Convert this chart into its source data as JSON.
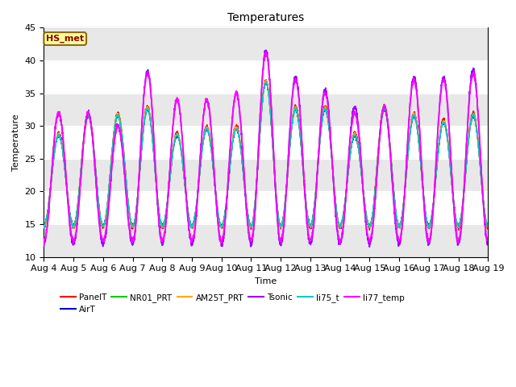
{
  "title": "Temperatures",
  "xlabel": "Time",
  "ylabel": "Temperature",
  "ylim": [
    10,
    45
  ],
  "xlim_days": [
    0,
    15
  ],
  "annotation_text": "HS_met",
  "annotation_color": "#8B0000",
  "annotation_bg": "#FFFF99",
  "annotation_border": "#8B6914",
  "series": [
    {
      "name": "PanelT",
      "color": "#ff0000",
      "lw": 1.0,
      "zorder": 3
    },
    {
      "name": "AirT",
      "color": "#0000cc",
      "lw": 1.0,
      "zorder": 3
    },
    {
      "name": "NR01_PRT",
      "color": "#00cc00",
      "lw": 1.0,
      "zorder": 3
    },
    {
      "name": "AM25T_PRT",
      "color": "#ffaa00",
      "lw": 1.0,
      "zorder": 3
    },
    {
      "name": "Tsonic",
      "color": "#9900ff",
      "lw": 1.2,
      "zorder": 4
    },
    {
      "name": "li75_t",
      "color": "#00cccc",
      "lw": 1.0,
      "zorder": 3
    },
    {
      "name": "li77_temp",
      "color": "#ff00ff",
      "lw": 1.2,
      "zorder": 5
    }
  ],
  "x_tick_labels": [
    "Aug 4",
    "Aug 5",
    "Aug 6",
    "Aug 7",
    "Aug 8",
    "Aug 9",
    "Aug 10",
    "Aug 11",
    "Aug 12",
    "Aug 13",
    "Aug 14",
    "Aug 15",
    "Aug 16",
    "Aug 17",
    "Aug 18",
    "Aug 19"
  ],
  "x_tick_positions": [
    0,
    1,
    2,
    3,
    4,
    5,
    6,
    7,
    8,
    9,
    10,
    11,
    12,
    13,
    14,
    15
  ],
  "yticks": [
    10,
    15,
    20,
    25,
    30,
    35,
    40,
    45
  ],
  "plot_facecolor": "#ffffff",
  "fig_facecolor": "#ffffff"
}
